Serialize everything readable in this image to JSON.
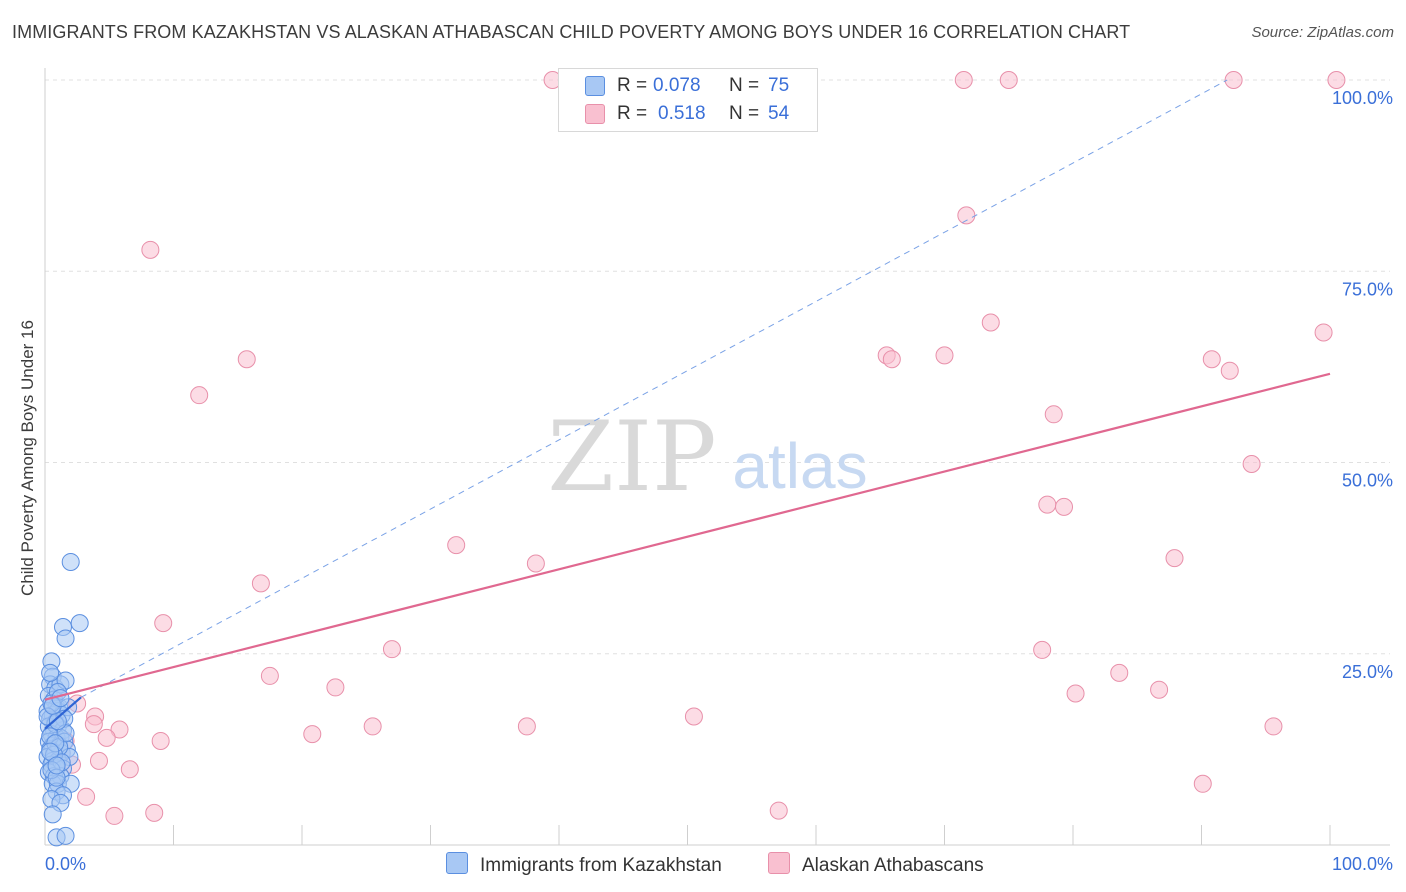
{
  "header": {
    "title": "IMMIGRANTS FROM KAZAKHSTAN VS ALASKAN ATHABASCAN CHILD POVERTY AMONG BOYS UNDER 16 CORRELATION CHART",
    "source": "Source: ZipAtlas.com"
  },
  "watermark": {
    "zip": "ZIP",
    "atlas": "atlas"
  },
  "legend": {
    "r_label": "R =",
    "n_label": "N =",
    "series1": {
      "r": "0.078",
      "n": "75"
    },
    "series2": {
      "r": "0.518",
      "n": "54"
    }
  },
  "colors": {
    "series1_fill": "#a8c8f4",
    "series1_stroke": "#5b8fe0",
    "series1_line": "#2e64d4",
    "series2_fill": "#f9c0d0",
    "series2_stroke": "#e890aa",
    "series2_line": "#e06890",
    "grid": "#e0e0e0",
    "tick_label": "#3a6fd8"
  },
  "chart_data": {
    "type": "scatter",
    "title": "IMMIGRANTS FROM KAZAKHSTAN VS ALASKAN ATHABASCAN CHILD POVERTY AMONG BOYS UNDER 16 CORRELATION CHART",
    "xlabel": "",
    "ylabel": "Child Poverty Among Boys Under 16",
    "xlim": [
      0,
      100
    ],
    "ylim": [
      0,
      100
    ],
    "x_tick_labels": [
      "0.0%",
      "100.0%"
    ],
    "y_ticks": [
      25,
      50,
      75,
      100
    ],
    "y_tick_labels": [
      "25.0%",
      "50.0%",
      "75.0%",
      "100.0%"
    ],
    "grid": true,
    "legend_position": "top-center",
    "series": [
      {
        "name": "Immigrants from Kazakhstan",
        "R": 0.078,
        "N": 75,
        "points": [
          [
            0.5,
            24
          ],
          [
            0.6,
            22
          ],
          [
            0.4,
            21
          ],
          [
            0.8,
            20.5
          ],
          [
            1.2,
            21
          ],
          [
            1.6,
            21.5
          ],
          [
            0.3,
            19.5
          ],
          [
            0.7,
            19
          ],
          [
            0.9,
            18
          ],
          [
            1.1,
            18
          ],
          [
            0.2,
            17.5
          ],
          [
            0.6,
            17
          ],
          [
            1.0,
            17.5
          ],
          [
            1.3,
            17
          ],
          [
            1.8,
            18
          ],
          [
            0.4,
            16.5
          ],
          [
            0.8,
            16
          ],
          [
            0.3,
            15.5
          ],
          [
            0.7,
            15
          ],
          [
            1.0,
            15.5
          ],
          [
            1.4,
            15
          ],
          [
            0.5,
            14.5
          ],
          [
            0.9,
            14
          ],
          [
            1.2,
            14
          ],
          [
            0.3,
            13.5
          ],
          [
            0.6,
            13
          ],
          [
            1.1,
            13
          ],
          [
            1.5,
            13.5
          ],
          [
            0.4,
            12.5
          ],
          [
            0.8,
            12
          ],
          [
            1.3,
            12
          ],
          [
            1.7,
            12.5
          ],
          [
            0.2,
            11.5
          ],
          [
            0.6,
            11
          ],
          [
            1.0,
            11
          ],
          [
            1.9,
            11.5
          ],
          [
            0.5,
            10.5
          ],
          [
            0.9,
            10
          ],
          [
            1.4,
            10
          ],
          [
            0.3,
            9.5
          ],
          [
            0.7,
            9
          ],
          [
            1.2,
            9
          ],
          [
            0.6,
            8
          ],
          [
            1.0,
            8
          ],
          [
            2.0,
            8
          ],
          [
            0.9,
            7
          ],
          [
            1.4,
            6.5
          ],
          [
            0.5,
            6
          ],
          [
            1.2,
            5.5
          ],
          [
            0.6,
            4
          ],
          [
            0.9,
            1
          ],
          [
            1.6,
            1.2
          ],
          [
            2.0,
            37
          ],
          [
            1.4,
            28.5
          ],
          [
            2.7,
            29
          ],
          [
            1.6,
            27
          ],
          [
            0.4,
            22.5
          ],
          [
            1.0,
            20
          ],
          [
            0.5,
            18.5
          ],
          [
            1.5,
            16.5
          ],
          [
            0.8,
            15.8
          ],
          [
            0.4,
            14.2
          ],
          [
            1.1,
            12.8
          ],
          [
            0.7,
            11.8
          ],
          [
            1.3,
            10.8
          ],
          [
            0.5,
            9.8
          ],
          [
            0.9,
            8.8
          ],
          [
            0.2,
            16.8
          ],
          [
            1.6,
            14.6
          ],
          [
            0.8,
            13.3
          ],
          [
            1.0,
            16.2
          ],
          [
            0.6,
            18.2
          ],
          [
            1.2,
            19.2
          ],
          [
            0.4,
            12.2
          ],
          [
            0.9,
            10.4
          ]
        ]
      },
      {
        "name": "Alaskan Athabascans",
        "R": 0.518,
        "N": 54,
        "points": [
          [
            39.5,
            100
          ],
          [
            71.5,
            100
          ],
          [
            75,
            100
          ],
          [
            92.5,
            100
          ],
          [
            100.5,
            100
          ],
          [
            8.2,
            77.8
          ],
          [
            71.7,
            82.3
          ],
          [
            73.6,
            68.3
          ],
          [
            99.5,
            67
          ],
          [
            15.7,
            63.5
          ],
          [
            65.5,
            64
          ],
          [
            65.9,
            63.5
          ],
          [
            70,
            64
          ],
          [
            90.8,
            63.5
          ],
          [
            92.2,
            62
          ],
          [
            12,
            58.8
          ],
          [
            78.5,
            56.3
          ],
          [
            93.9,
            49.8
          ],
          [
            78,
            44.5
          ],
          [
            79.3,
            44.2
          ],
          [
            32,
            39.2
          ],
          [
            38.2,
            36.8
          ],
          [
            87.9,
            37.5
          ],
          [
            16.8,
            34.2
          ],
          [
            9.2,
            29
          ],
          [
            27,
            25.6
          ],
          [
            77.6,
            25.5
          ],
          [
            17.5,
            22.1
          ],
          [
            22.6,
            20.6
          ],
          [
            83.6,
            22.5
          ],
          [
            80.2,
            19.8
          ],
          [
            86.7,
            20.3
          ],
          [
            2.5,
            18.5
          ],
          [
            3.9,
            16.8
          ],
          [
            3.8,
            15.8
          ],
          [
            25.5,
            15.5
          ],
          [
            37.5,
            15.5
          ],
          [
            50.5,
            16.8
          ],
          [
            95.6,
            15.5
          ],
          [
            20.8,
            14.5
          ],
          [
            5.8,
            15.1
          ],
          [
            4.8,
            14
          ],
          [
            9,
            13.6
          ],
          [
            4.2,
            11
          ],
          [
            6.6,
            9.9
          ],
          [
            1.3,
            12
          ],
          [
            1.0,
            11
          ],
          [
            3.2,
            6.3
          ],
          [
            5.4,
            3.8
          ],
          [
            8.5,
            4.2
          ],
          [
            57.1,
            4.5
          ],
          [
            90.1,
            8
          ],
          [
            1.6,
            13.6
          ],
          [
            2.1,
            10.5
          ]
        ]
      }
    ],
    "trendlines": [
      {
        "series": "Immigrants from Kazakhstan",
        "style": "solid",
        "x": [
          0,
          2.8
        ],
        "y": [
          15.2,
          19.3
        ]
      },
      {
        "series": "Immigrants from Kazakhstan",
        "style": "dashed",
        "x": [
          2.8,
          92
        ],
        "y": [
          19.3,
          100
        ]
      },
      {
        "series": "Alaskan Athabascans",
        "style": "solid",
        "x": [
          0,
          100
        ],
        "y": [
          19,
          61.6
        ]
      }
    ]
  },
  "bottom_legend": {
    "series1_label": "Immigrants from Kazakhstan",
    "series2_label": "Alaskan Athabascans"
  }
}
